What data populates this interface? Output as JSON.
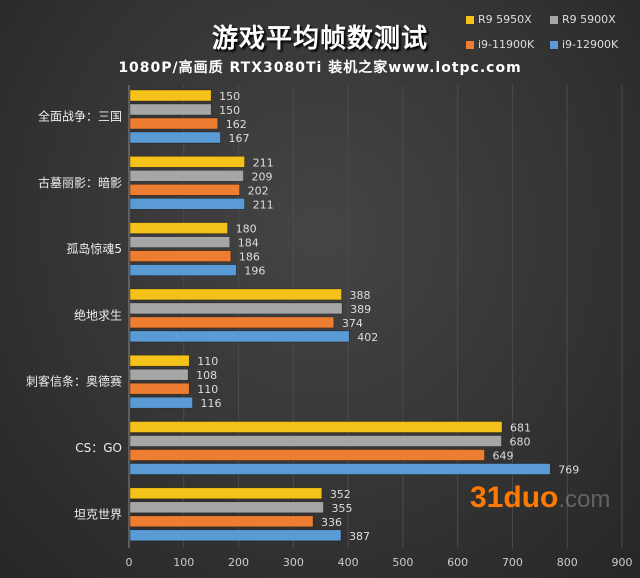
{
  "chart_data": {
    "type": "bar",
    "orientation": "horizontal",
    "title": "游戏平均帧数测试",
    "subtitle": "1080P/高画质 RTX3080Ti 装机之家www.lotpc.com",
    "categories": [
      "全面战争：三国",
      "古墓丽影：暗影",
      "孤岛惊魂5",
      "绝地求生",
      "刺客信条：奥德赛",
      "CS：GO",
      "坦克世界"
    ],
    "series": [
      {
        "name": "R9 5950X",
        "color": "#f5c21b",
        "values": [
          150,
          211,
          180,
          388,
          110,
          681,
          352
        ]
      },
      {
        "name": "R9 5900X",
        "color": "#a6a6a6",
        "values": [
          150,
          209,
          184,
          389,
          108,
          680,
          355
        ]
      },
      {
        "name": "i9-11900K",
        "color": "#ed7d31",
        "values": [
          162,
          202,
          186,
          374,
          110,
          649,
          336
        ]
      },
      {
        "name": "i9-12900K",
        "color": "#5b9bd5",
        "values": [
          167,
          211,
          196,
          402,
          116,
          769,
          387
        ]
      }
    ],
    "xlim": [
      0,
      900
    ],
    "xticks": [
      "0",
      "100",
      "200",
      "300",
      "400",
      "500",
      "600",
      "700",
      "800",
      "900"
    ],
    "grid": true,
    "legend_position": "top-right"
  },
  "watermark": {
    "main": "31duo",
    "suffix": ".com"
  }
}
